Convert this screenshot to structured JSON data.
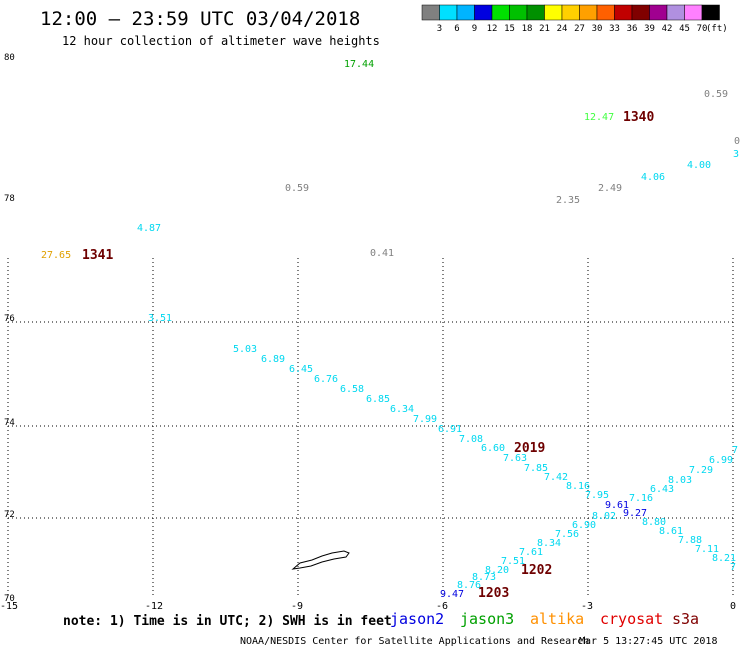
{
  "header": {
    "title": "12:00 — 23:59 UTC 03/04/2018",
    "subtitle": "12 hour collection of altimeter wave heights"
  },
  "legend": {
    "colors": [
      "#808080",
      "#00e0ff",
      "#00b4ff",
      "#0000e0",
      "#00e000",
      "#00c000",
      "#009000",
      "#ffff00",
      "#ffd000",
      "#ffa000",
      "#ff6000",
      "#c00000",
      "#800000",
      "#a00090",
      "#b090e0",
      "#ff80ff",
      "#000000"
    ],
    "ticks": [
      "3",
      "6",
      "9",
      "12",
      "15",
      "18",
      "21",
      "24",
      "27",
      "30",
      "33",
      "36",
      "39",
      "42",
      "45",
      "70"
    ],
    "unit": "(ft)"
  },
  "map": {
    "lat_labels": [
      "80",
      "78",
      "76",
      "74",
      "72",
      "70"
    ],
    "lon_labels": [
      "-15",
      "-12",
      "-9",
      "-6",
      "-3",
      "0"
    ]
  },
  "observations": [
    {
      "v": "17.44",
      "c": "#00a000"
    },
    {
      "v": "0.59",
      "c": "#808080"
    },
    {
      "v": "12.47",
      "c": "#40ff40"
    },
    {
      "v": "0",
      "c": "#808080"
    },
    {
      "v": "3",
      "c": "#00d8f0"
    },
    {
      "v": "4.00",
      "c": "#00d8f0"
    },
    {
      "v": "4.06",
      "c": "#00d8f0"
    },
    {
      "v": "2.49",
      "c": "#808080"
    },
    {
      "v": "2.35",
      "c": "#808080"
    },
    {
      "v": "0.59",
      "c": "#808080"
    },
    {
      "v": "4.87",
      "c": "#00d8f0"
    },
    {
      "v": "27.65",
      "c": "#e0a000"
    },
    {
      "v": "0.41",
      "c": "#808080"
    },
    {
      "v": "3.51",
      "c": "#00d8f0"
    },
    {
      "v": "5.03",
      "c": "#00d8f0"
    },
    {
      "v": "6.89",
      "c": "#00d8f0"
    },
    {
      "v": "6.45",
      "c": "#00d8f0"
    },
    {
      "v": "6.76",
      "c": "#00d8f0"
    },
    {
      "v": "6.58",
      "c": "#00d8f0"
    },
    {
      "v": "6.85",
      "c": "#00d8f0"
    },
    {
      "v": "6.34",
      "c": "#00d8f0"
    },
    {
      "v": "7.99",
      "c": "#00d8f0"
    },
    {
      "v": "6.91",
      "c": "#00d8f0"
    },
    {
      "v": "7.08",
      "c": "#00d8f0"
    },
    {
      "v": "6.60",
      "c": "#00d8f0"
    },
    {
      "v": "7.63",
      "c": "#00d8f0"
    },
    {
      "v": "7.85",
      "c": "#00d8f0"
    },
    {
      "v": "7.42",
      "c": "#00d8f0"
    },
    {
      "v": "8.16",
      "c": "#00d8f0"
    },
    {
      "v": "7.95",
      "c": "#00d8f0"
    },
    {
      "v": "9.61",
      "c": "#0000e0"
    },
    {
      "v": "7.16",
      "c": "#00d8f0"
    },
    {
      "v": "6.43",
      "c": "#00d8f0"
    },
    {
      "v": "8.03",
      "c": "#00d8f0"
    },
    {
      "v": "7.29",
      "c": "#00d8f0"
    },
    {
      "v": "6.99",
      "c": "#00d8f0"
    },
    {
      "v": "7",
      "c": "#00d8f0"
    },
    {
      "v": "9.27",
      "c": "#0000e0"
    },
    {
      "v": "8.02",
      "c": "#00d8f0"
    },
    {
      "v": "6.90",
      "c": "#00d8f0"
    },
    {
      "v": "8.80",
      "c": "#00d8f0"
    },
    {
      "v": "8.61",
      "c": "#00d8f0"
    },
    {
      "v": "7.88",
      "c": "#00d8f0"
    },
    {
      "v": "7.11",
      "c": "#00d8f0"
    },
    {
      "v": "8.21",
      "c": "#00d8f0"
    },
    {
      "v": "7",
      "c": "#00d8f0"
    },
    {
      "v": "7.56",
      "c": "#00d8f0"
    },
    {
      "v": "8.34",
      "c": "#00d8f0"
    },
    {
      "v": "7.61",
      "c": "#00d8f0"
    },
    {
      "v": "7.51",
      "c": "#00d8f0"
    },
    {
      "v": "8.20",
      "c": "#00d8f0"
    },
    {
      "v": "8.73",
      "c": "#00d8f0"
    },
    {
      "v": "8.76",
      "c": "#00d8f0"
    },
    {
      "v": "9.47",
      "c": "#0000e0"
    }
  ],
  "pass_times": [
    "1340",
    "1341",
    "2019",
    "1202",
    "1203"
  ],
  "footer": {
    "note": "note: 1) Time is in UTC; 2) SWH is in feet",
    "satellites": [
      {
        "name": "jason2",
        "color": "#0000e0"
      },
      {
        "name": "jason3",
        "color": "#00a000"
      },
      {
        "name": "altika",
        "color": "#ff9000"
      },
      {
        "name": "cryosat",
        "color": "#e00000"
      },
      {
        "name": "s3a",
        "color": "#800000"
      }
    ],
    "credit": "NOAA/NESDIS Center for Satellite Applications and Research",
    "timestamp": "Mar  5 13:27:45 UTC 2018"
  }
}
